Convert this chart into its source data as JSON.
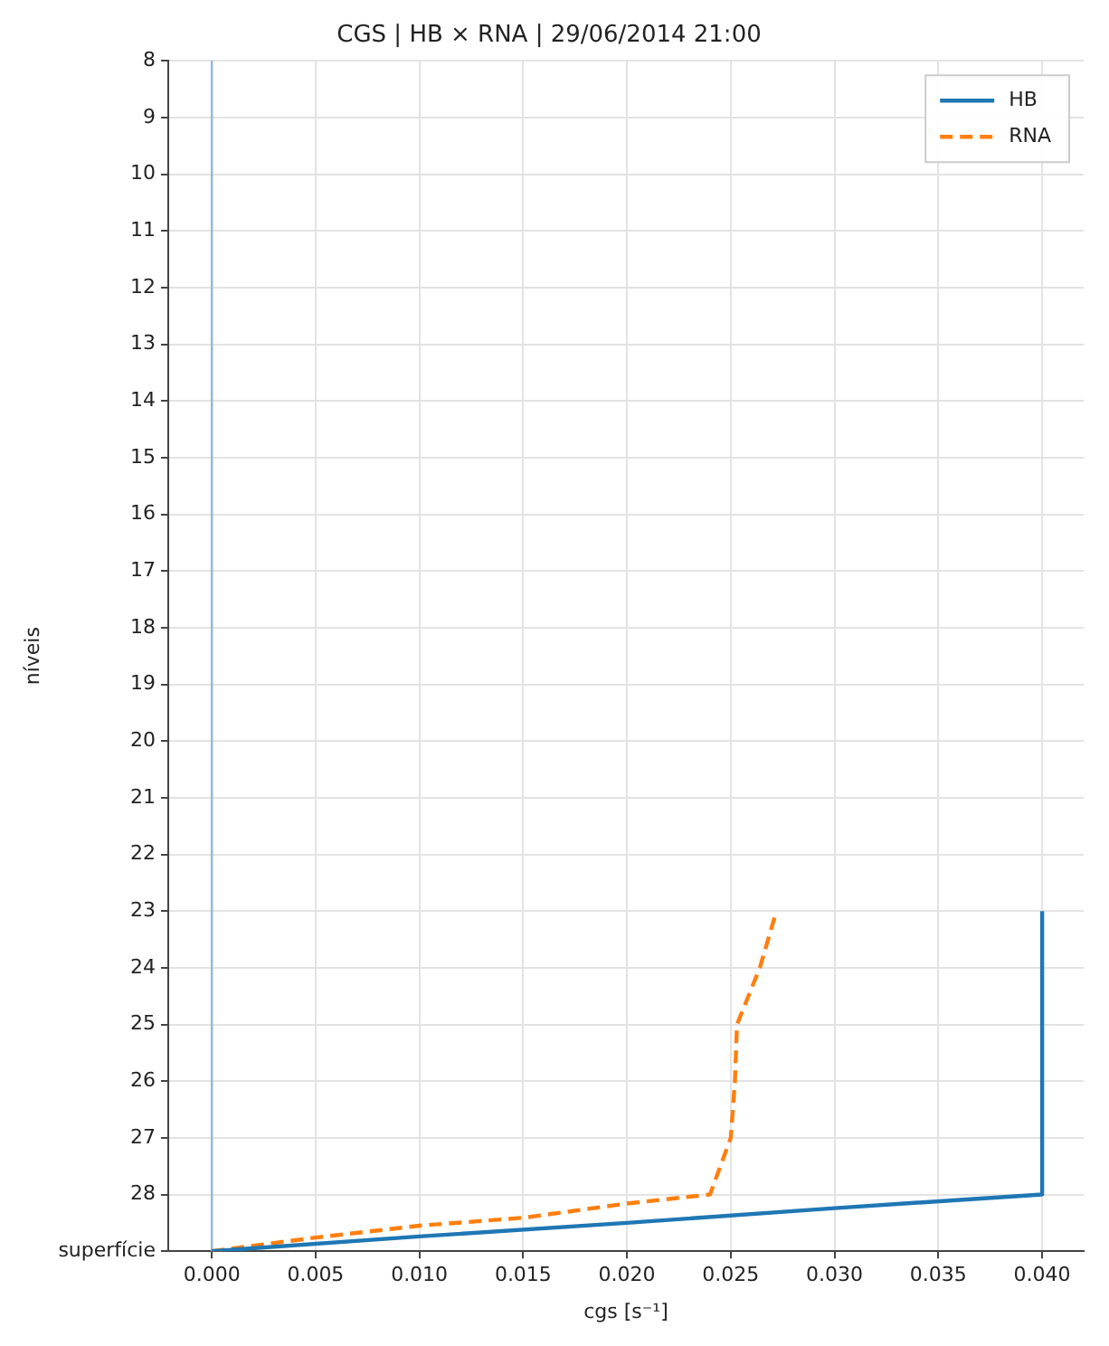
{
  "chart_data": {
    "type": "line",
    "title": "CGS | HB × RNA | 29/06/2014 21:00",
    "xlabel": "cgs [s⁻¹]",
    "ylabel": "níveis",
    "series": [
      {
        "name": "HB",
        "color": "#1f77b4",
        "line_style": "solid",
        "x": [
          0,
          0.01,
          0.02,
          0.03,
          0.04,
          0.04
        ],
        "values": [
          29,
          28.74,
          28.5,
          28.24,
          28,
          23
        ]
      },
      {
        "name": "RNA",
        "color": "#ff7f0e",
        "line_style": "dashed",
        "x": [
          0,
          0.005,
          0.01,
          0.015,
          0.02,
          0.024,
          0.025,
          0.0252,
          0.0253,
          0.0264,
          0.0272
        ],
        "values": [
          29,
          28.76,
          28.55,
          28.41,
          28.16,
          28,
          27,
          26,
          25,
          24,
          23
        ]
      }
    ],
    "ref_lines": [
      {
        "axis": "x",
        "value": 0,
        "color": "#8fb8de"
      }
    ],
    "xlim": [
      -0.0021,
      0.042
    ],
    "xticks": [
      {
        "value": 0,
        "label": "0.000"
      },
      {
        "value": 0.005,
        "label": "0.005"
      },
      {
        "value": 0.01,
        "label": "0.010"
      },
      {
        "value": 0.015,
        "label": "0.015"
      },
      {
        "value": 0.02,
        "label": "0.020"
      },
      {
        "value": 0.025,
        "label": "0.025"
      },
      {
        "value": 0.03,
        "label": "0.030"
      },
      {
        "value": 0.035,
        "label": "0.035"
      },
      {
        "value": 0.04,
        "label": "0.040"
      }
    ],
    "ylim": [
      29,
      8
    ],
    "yticks": [
      8,
      9,
      10,
      11,
      12,
      13,
      14,
      15,
      16,
      17,
      18,
      19,
      20,
      21,
      22,
      23,
      24,
      25,
      26,
      27,
      28,
      {
        "value": 29,
        "label": "superfície"
      }
    ],
    "grid": true,
    "legend": "top right",
    "marker": "none"
  }
}
